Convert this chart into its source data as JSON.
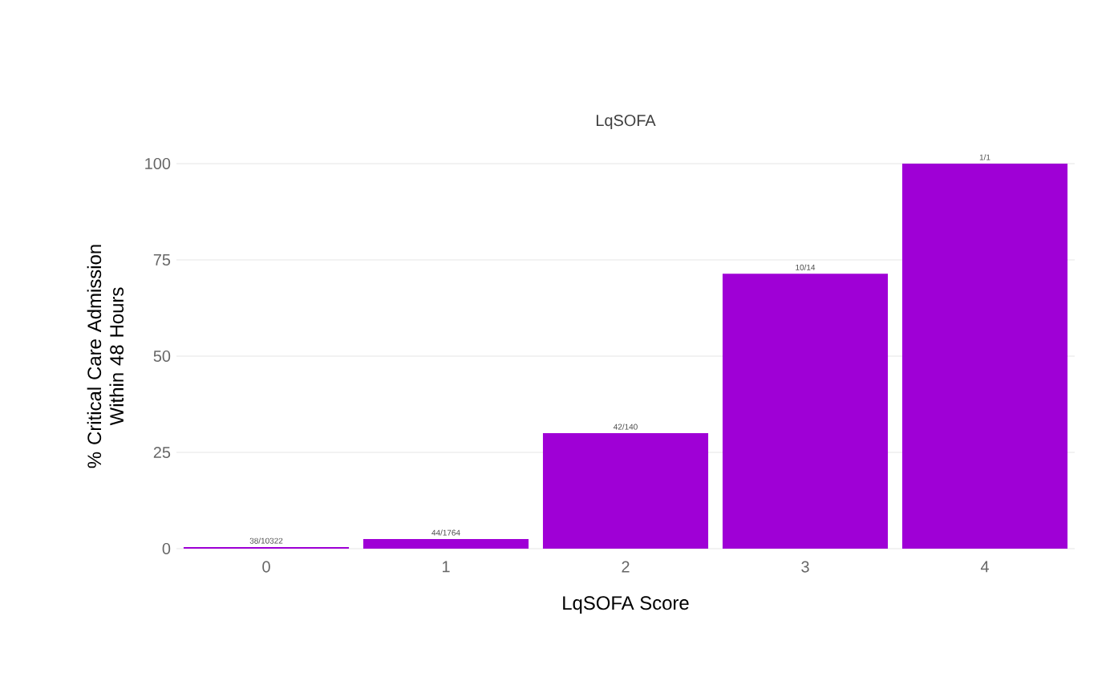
{
  "chart_data": {
    "type": "bar",
    "title": "LqSOFA",
    "xlabel": "LqSOFA Score",
    "ylabel": "% Critical Care Admission Within 48 Hours",
    "categories": [
      "0",
      "1",
      "2",
      "3",
      "4"
    ],
    "values": [
      0.4,
      2.5,
      30,
      71.4,
      100
    ],
    "value_labels": [
      "38/10322",
      "44/1764",
      "42/140",
      "10/14",
      "1/1"
    ],
    "color": "#9f00d6",
    "ylim": [
      0,
      100
    ],
    "yticks": [
      0,
      25,
      50,
      75,
      100
    ],
    "grid": "y"
  }
}
